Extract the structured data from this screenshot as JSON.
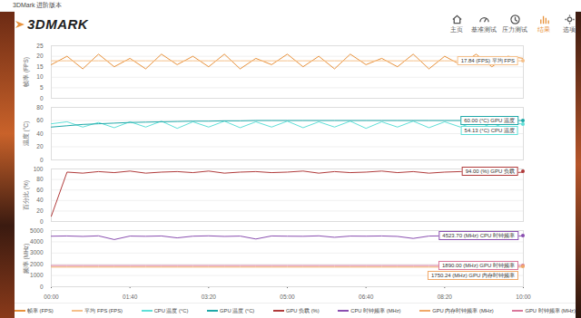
{
  "header": {
    "window_title": "3DMark 进阶版本",
    "logo": "3DMARK",
    "nav": [
      "主页",
      "基准测试",
      "压力测试",
      "结果",
      "选项"
    ],
    "active": "结果"
  },
  "chart_data": [
    {
      "type": "line",
      "y_label": "帧率 (FPS)",
      "grid": true,
      "tick_labels": "y",
      "x": [
        0,
        20,
        40,
        60,
        80,
        100,
        120,
        140,
        160,
        180,
        200,
        220,
        240,
        260,
        280,
        300,
        320,
        340,
        360,
        380,
        400,
        420,
        440,
        460,
        480,
        500,
        520,
        540,
        560,
        580,
        600
      ],
      "xlim": [
        0,
        600
      ],
      "xticks": [
        {
          "value": 0,
          "label": "00:00"
        },
        {
          "value": 100,
          "label": "01:40"
        },
        {
          "value": 200,
          "label": "03:20"
        },
        {
          "value": 300,
          "label": "05:00"
        },
        {
          "value": 400,
          "label": "06:40"
        },
        {
          "value": 500,
          "label": "08:20"
        },
        {
          "value": 600,
          "label": "10:00"
        }
      ],
      "ylim": [
        0,
        25
      ],
      "yticks": [
        0,
        5,
        10,
        15,
        20,
        25
      ],
      "series": [
        {
          "name": "帧率 (FPS)",
          "color": "#e8913a",
          "values": [
            16,
            20,
            14,
            21,
            15,
            19,
            14,
            21,
            16,
            20,
            15,
            21,
            14,
            19,
            16,
            21,
            15,
            20,
            14,
            21,
            16,
            19,
            15,
            21,
            14,
            20,
            16,
            21,
            15,
            20,
            19
          ]
        },
        {
          "name": "平均 FPS (FPS)",
          "color": "#f5c08a",
          "values": [
            17.84,
            17.84,
            17.84,
            17.84,
            17.84,
            17.84,
            17.84,
            17.84,
            17.84,
            17.84,
            17.84,
            17.84,
            17.84,
            17.84,
            17.84,
            17.84,
            17.84,
            17.84,
            17.84,
            17.84,
            17.84,
            17.84,
            17.84,
            17.84,
            17.84,
            17.84,
            17.84,
            17.84,
            17.84,
            17.84,
            17.84
          ]
        }
      ],
      "annotations": [
        {
          "series": "平均 FPS (FPS)",
          "value": 17.84,
          "label": "17.84 (FPS) 平均 FPS"
        }
      ]
    },
    {
      "type": "line",
      "y_label": "温度 (°C)",
      "grid": true,
      "tick_labels": "y",
      "x": [
        0,
        20,
        40,
        60,
        80,
        100,
        120,
        140,
        160,
        180,
        200,
        220,
        240,
        260,
        280,
        300,
        320,
        340,
        360,
        380,
        400,
        420,
        440,
        460,
        480,
        500,
        520,
        540,
        560,
        580,
        600
      ],
      "xlim": [
        0,
        600
      ],
      "xticks": [
        {
          "value": 0,
          "label": "00:00"
        },
        {
          "value": 100,
          "label": "01:40"
        },
        {
          "value": 200,
          "label": "03:20"
        },
        {
          "value": 300,
          "label": "05:00"
        },
        {
          "value": 400,
          "label": "06:40"
        },
        {
          "value": 500,
          "label": "08:20"
        },
        {
          "value": 600,
          "label": "10:00"
        }
      ],
      "ylim": [
        0,
        80
      ],
      "yticks": [
        0,
        20,
        40,
        60,
        80
      ],
      "series": [
        {
          "name": "CPU 温度 (°C)",
          "color": "#5fe0d8",
          "values": [
            55,
            58,
            50,
            57,
            49,
            58,
            50,
            59,
            48,
            58,
            50,
            59,
            49,
            58,
            50,
            59,
            49,
            58,
            50,
            59,
            48,
            58,
            50,
            59,
            49,
            58,
            50,
            59,
            49,
            58,
            54.13
          ]
        },
        {
          "name": "GPU 温度 (°C)",
          "color": "#1fa8a8",
          "values": [
            50,
            52,
            54,
            55,
            56,
            57,
            57.5,
            58,
            58.5,
            59,
            59,
            59.5,
            59.5,
            60,
            60,
            60,
            60,
            60,
            60,
            60,
            60,
            60,
            60,
            60,
            60,
            60,
            60,
            60,
            60,
            60,
            60
          ]
        }
      ],
      "annotations": [
        {
          "series": "GPU 温度 (°C)",
          "value": 60.0,
          "label": "60.00 (°C) GPU 温度"
        },
        {
          "series": "CPU 温度 (°C)",
          "value": 54.13,
          "label": "54.13 (°C) CPU 温度"
        }
      ]
    },
    {
      "type": "line",
      "y_label": "百分比 (%)",
      "grid": true,
      "tick_labels": "y",
      "x": [
        0,
        20,
        40,
        60,
        80,
        100,
        120,
        140,
        160,
        180,
        200,
        220,
        240,
        260,
        280,
        300,
        320,
        340,
        360,
        380,
        400,
        420,
        440,
        460,
        480,
        500,
        520,
        540,
        560,
        580,
        600
      ],
      "xlim": [
        0,
        600
      ],
      "xticks": [
        {
          "value": 0,
          "label": "00:00"
        },
        {
          "value": 100,
          "label": "01:40"
        },
        {
          "value": 200,
          "label": "03:20"
        },
        {
          "value": 300,
          "label": "05:00"
        },
        {
          "value": 400,
          "label": "06:40"
        },
        {
          "value": 500,
          "label": "08:20"
        },
        {
          "value": 600,
          "label": "10:00"
        }
      ],
      "ylim": [
        0,
        100
      ],
      "yticks": [
        0,
        20,
        40,
        60,
        80,
        100
      ],
      "series": [
        {
          "name": "GPU 负载 (%)",
          "color": "#b03a3a",
          "values": [
            10,
            94,
            92,
            95,
            93,
            96,
            92,
            94,
            95,
            93,
            96,
            92,
            94,
            95,
            93,
            94,
            96,
            92,
            95,
            93,
            94,
            96,
            93,
            95,
            92,
            94,
            95,
            93,
            96,
            92,
            94
          ]
        }
      ],
      "annotations": [
        {
          "series": "GPU 负载 (%)",
          "value": 94.0,
          "label": "94.00 (%) GPU 负载"
        }
      ]
    },
    {
      "type": "line",
      "y_label": "频率 (MHz)",
      "grid": true,
      "tick_labels": true,
      "x": [
        0,
        20,
        40,
        60,
        80,
        100,
        120,
        140,
        160,
        180,
        200,
        220,
        240,
        260,
        280,
        300,
        320,
        340,
        360,
        380,
        400,
        420,
        440,
        460,
        480,
        500,
        520,
        540,
        560,
        580,
        600
      ],
      "xlim": [
        0,
        600
      ],
      "xticks": [
        {
          "value": 0,
          "label": "00:00"
        },
        {
          "value": 100,
          "label": "01:40"
        },
        {
          "value": 200,
          "label": "03:20"
        },
        {
          "value": 300,
          "label": "05:00"
        },
        {
          "value": 400,
          "label": "06:40"
        },
        {
          "value": 500,
          "label": "08:20"
        },
        {
          "value": 600,
          "label": "10:00"
        }
      ],
      "ylim": [
        0,
        5000
      ],
      "yticks": [
        0,
        1000,
        2000,
        3000,
        4000,
        5000
      ],
      "series": [
        {
          "name": "CPU 时钟频率 (MHz)",
          "color": "#8a4fb0",
          "values": [
            4500,
            4520,
            4480,
            4530,
            4200,
            4510,
            4490,
            4520,
            4350,
            4500,
            4530,
            4480,
            4510,
            4250,
            4520,
            4500,
            4490,
            4530,
            4400,
            4510,
            4500,
            4520,
            4480,
            4300,
            4510,
            4530,
            4500,
            4490,
            4520,
            4510,
            4523.7
          ]
        },
        {
          "name": "GPU 内存时钟频率 (MHz)",
          "color": "#f0a868",
          "values": [
            1750.24,
            1750.24,
            1750.24,
            1750.24,
            1750.24,
            1750.24,
            1750.24,
            1750.24,
            1750.24,
            1750.24,
            1750.24,
            1750.24,
            1750.24,
            1750.24,
            1750.24,
            1750.24,
            1750.24,
            1750.24,
            1750.24,
            1750.24,
            1750.24,
            1750.24,
            1750.24,
            1750.24,
            1750.24,
            1750.24,
            1750.24,
            1750.24,
            1750.24,
            1750.24,
            1750.24
          ]
        },
        {
          "name": "GPU 时钟频率 (MHz)",
          "color": "#d9779a",
          "values": [
            1890,
            1890,
            1890,
            1890,
            1890,
            1890,
            1890,
            1890,
            1890,
            1890,
            1890,
            1890,
            1890,
            1890,
            1890,
            1890,
            1890,
            1890,
            1890,
            1890,
            1890,
            1890,
            1890,
            1890,
            1890,
            1890,
            1890,
            1890,
            1890,
            1890,
            1890
          ]
        }
      ],
      "annotations": [
        {
          "series": "CPU 时钟频率 (MHz)",
          "value": 4523.7,
          "label": "4523.70 (MHz) CPU 时钟频率"
        },
        {
          "series": "GPU 内存时钟频率 (MHz)",
          "value": 1750.24,
          "label": "1750.24 (MHz) GPU 内存时钟频率"
        },
        {
          "series": "GPU 时钟频率 (MHz)",
          "value": 1890.0,
          "label": "1890.00 (MHz) GPU 时钟频率"
        }
      ]
    }
  ]
}
